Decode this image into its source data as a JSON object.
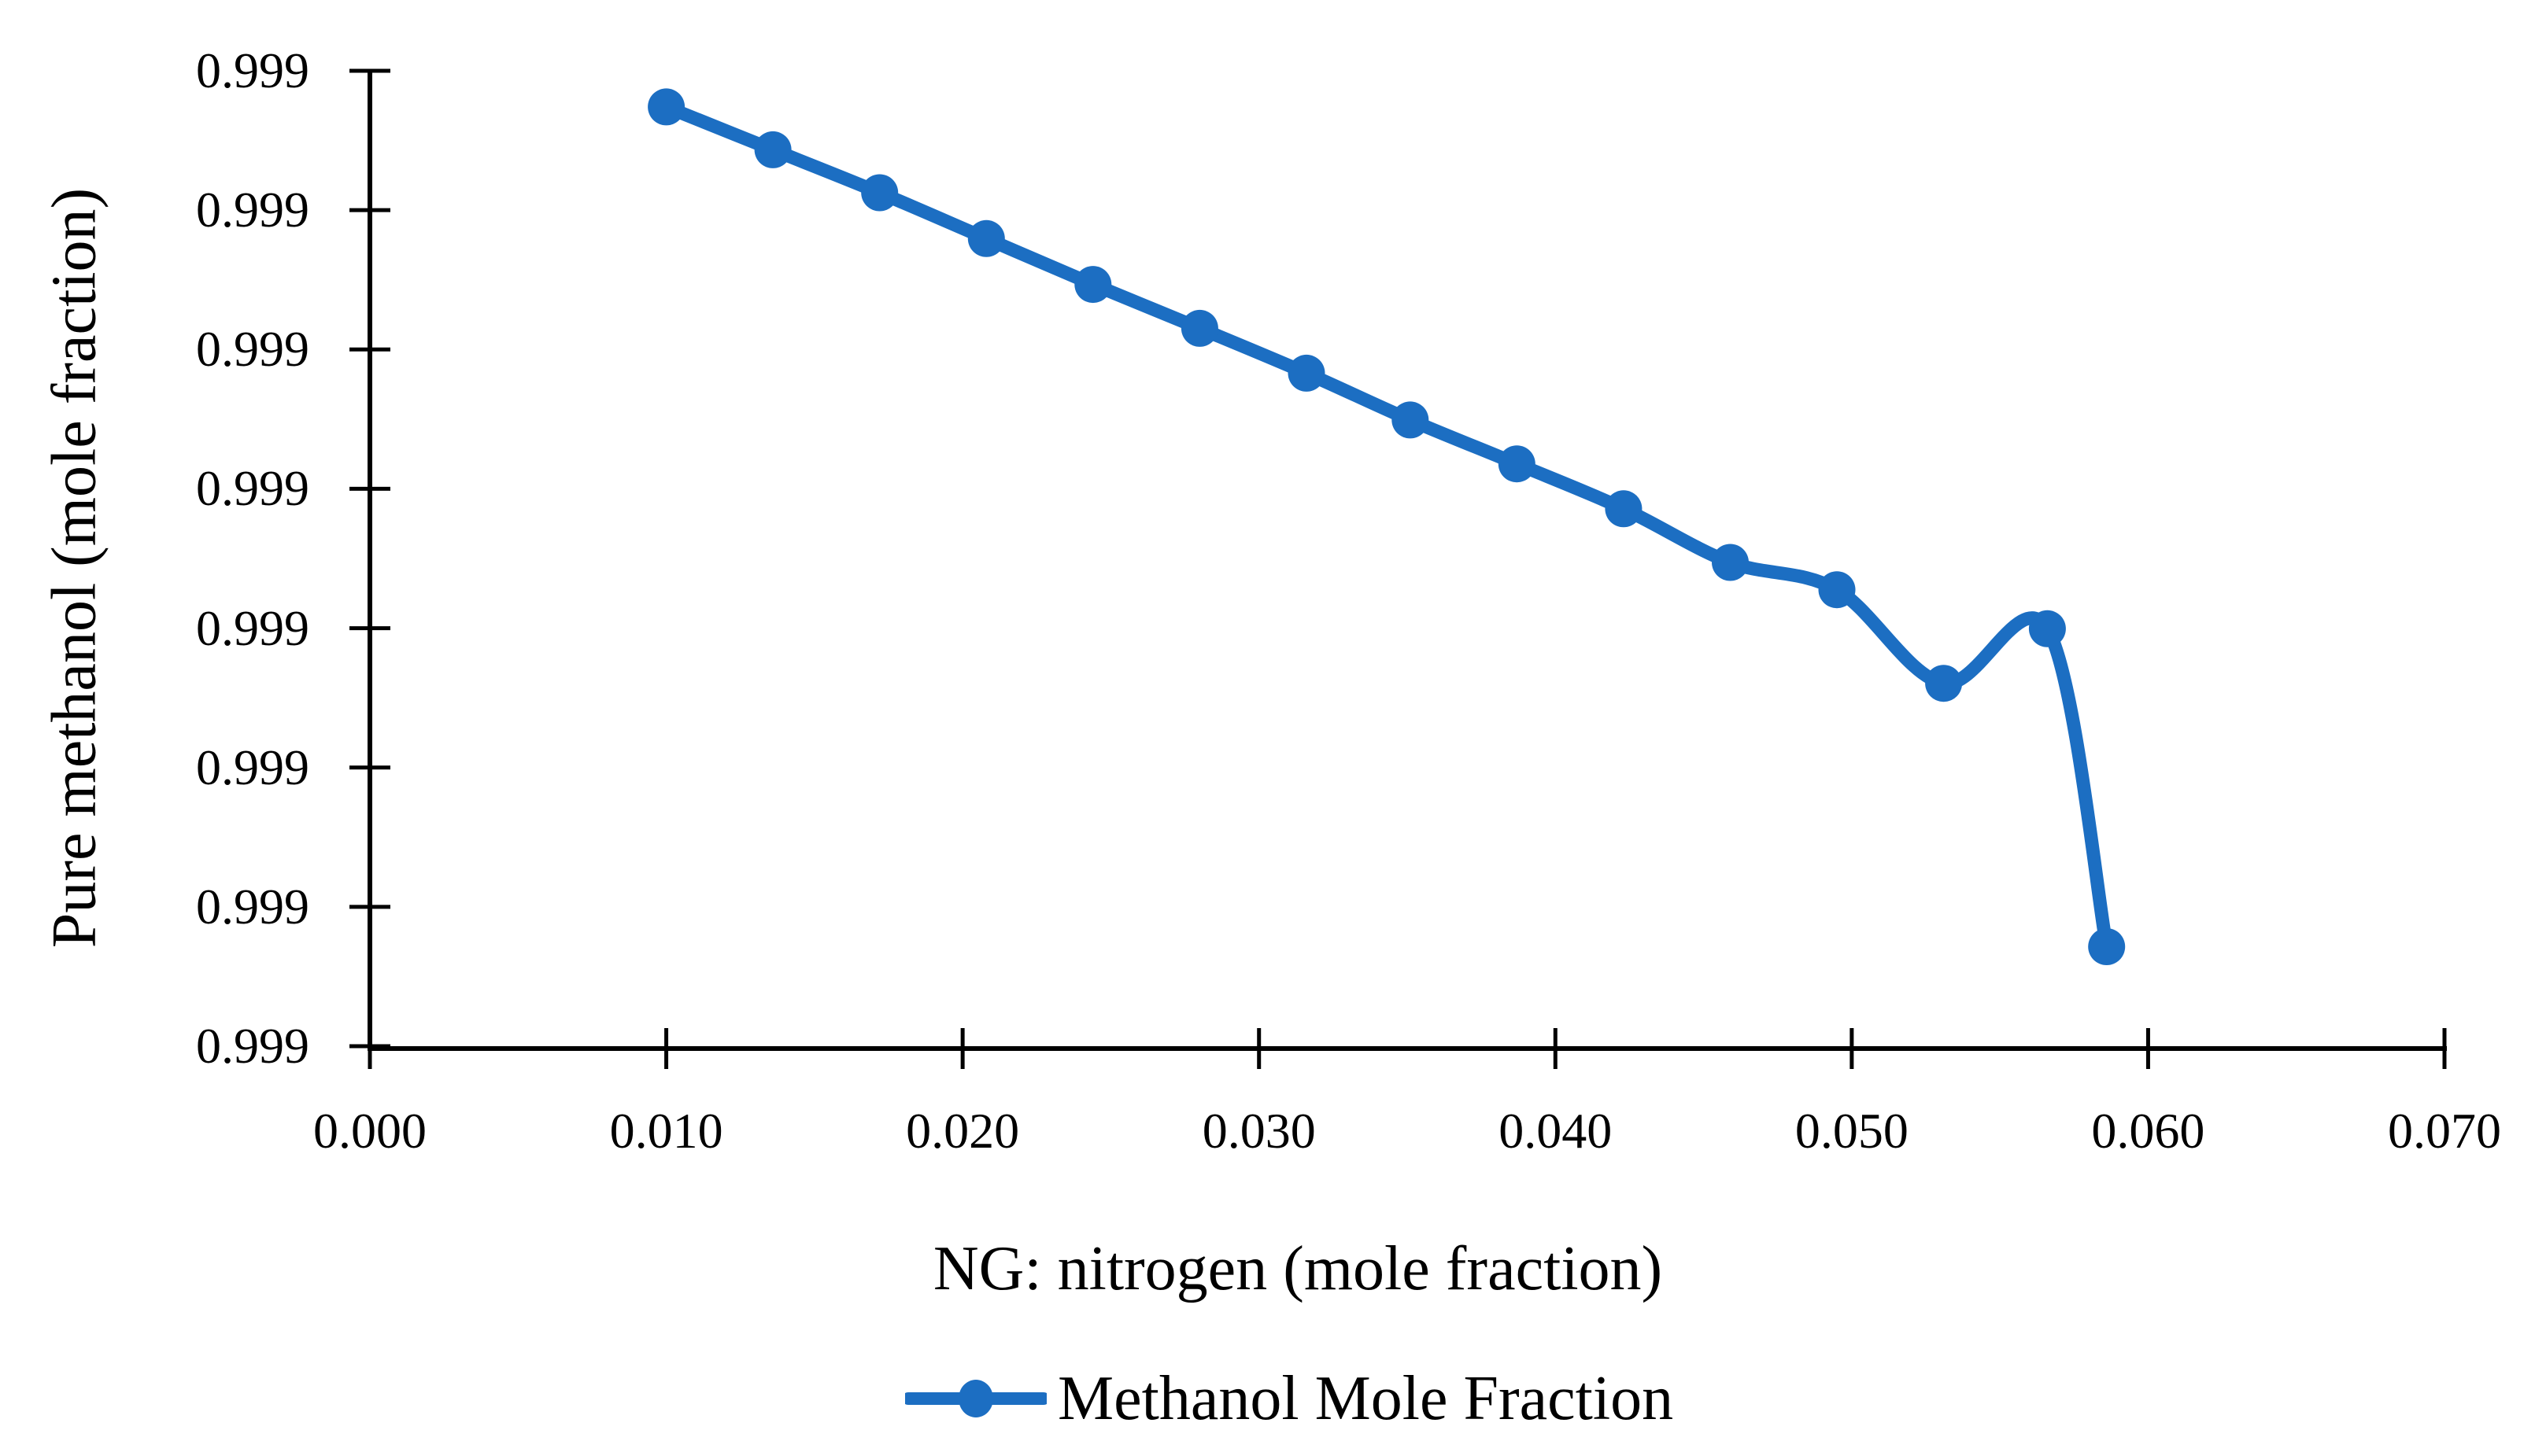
{
  "chart_data": {
    "type": "line",
    "smoothed": true,
    "marker": "circle",
    "title": "",
    "xlabel": "NG: nitrogen (mole fraction)",
    "ylabel": "Pure methanol (mole fraction)",
    "x_axis": {
      "min": 0.0,
      "max": 0.07,
      "tick_values": [
        0.0,
        0.01,
        0.02,
        0.03,
        0.04,
        0.05,
        0.06,
        0.07
      ],
      "tick_labels": [
        "0.000",
        "0.010",
        "0.020",
        "0.030",
        "0.040",
        "0.050",
        "0.060",
        "0.070"
      ]
    },
    "y_axis": {
      "tick_labels": [
        "0.999",
        "0.999",
        "0.999",
        "0.999",
        "0.999",
        "0.999",
        "0.999",
        "0.999"
      ],
      "tick_count": 8
    },
    "grid": false,
    "legend": {
      "position": "bottom",
      "entries": [
        "Methanol Mole Fraction"
      ]
    },
    "series": [
      {
        "name": "Methanol Mole Fraction",
        "color": "#1C6EC2",
        "points": [
          {
            "x": 0.01,
            "y_axis_fraction": 0.963
          },
          {
            "x": 0.0136,
            "y_axis_fraction": 0.919
          },
          {
            "x": 0.0172,
            "y_axis_fraction": 0.875
          },
          {
            "x": 0.0208,
            "y_axis_fraction": 0.828
          },
          {
            "x": 0.0244,
            "y_axis_fraction": 0.781
          },
          {
            "x": 0.028,
            "y_axis_fraction": 0.736
          },
          {
            "x": 0.0316,
            "y_axis_fraction": 0.69
          },
          {
            "x": 0.0351,
            "y_axis_fraction": 0.642
          },
          {
            "x": 0.0387,
            "y_axis_fraction": 0.597
          },
          {
            "x": 0.0423,
            "y_axis_fraction": 0.551
          },
          {
            "x": 0.0459,
            "y_axis_fraction": 0.496
          },
          {
            "x": 0.0495,
            "y_axis_fraction": 0.468
          },
          {
            "x": 0.0531,
            "y_axis_fraction": 0.372
          },
          {
            "x": 0.0566,
            "y_axis_fraction": 0.428
          },
          {
            "x": 0.0586,
            "y_axis_fraction": 0.102
          }
        ]
      }
    ],
    "colors": {
      "series": "#1C6EC2",
      "axis": "#000000",
      "text": "#000000",
      "background": "#FFFFFF"
    }
  }
}
